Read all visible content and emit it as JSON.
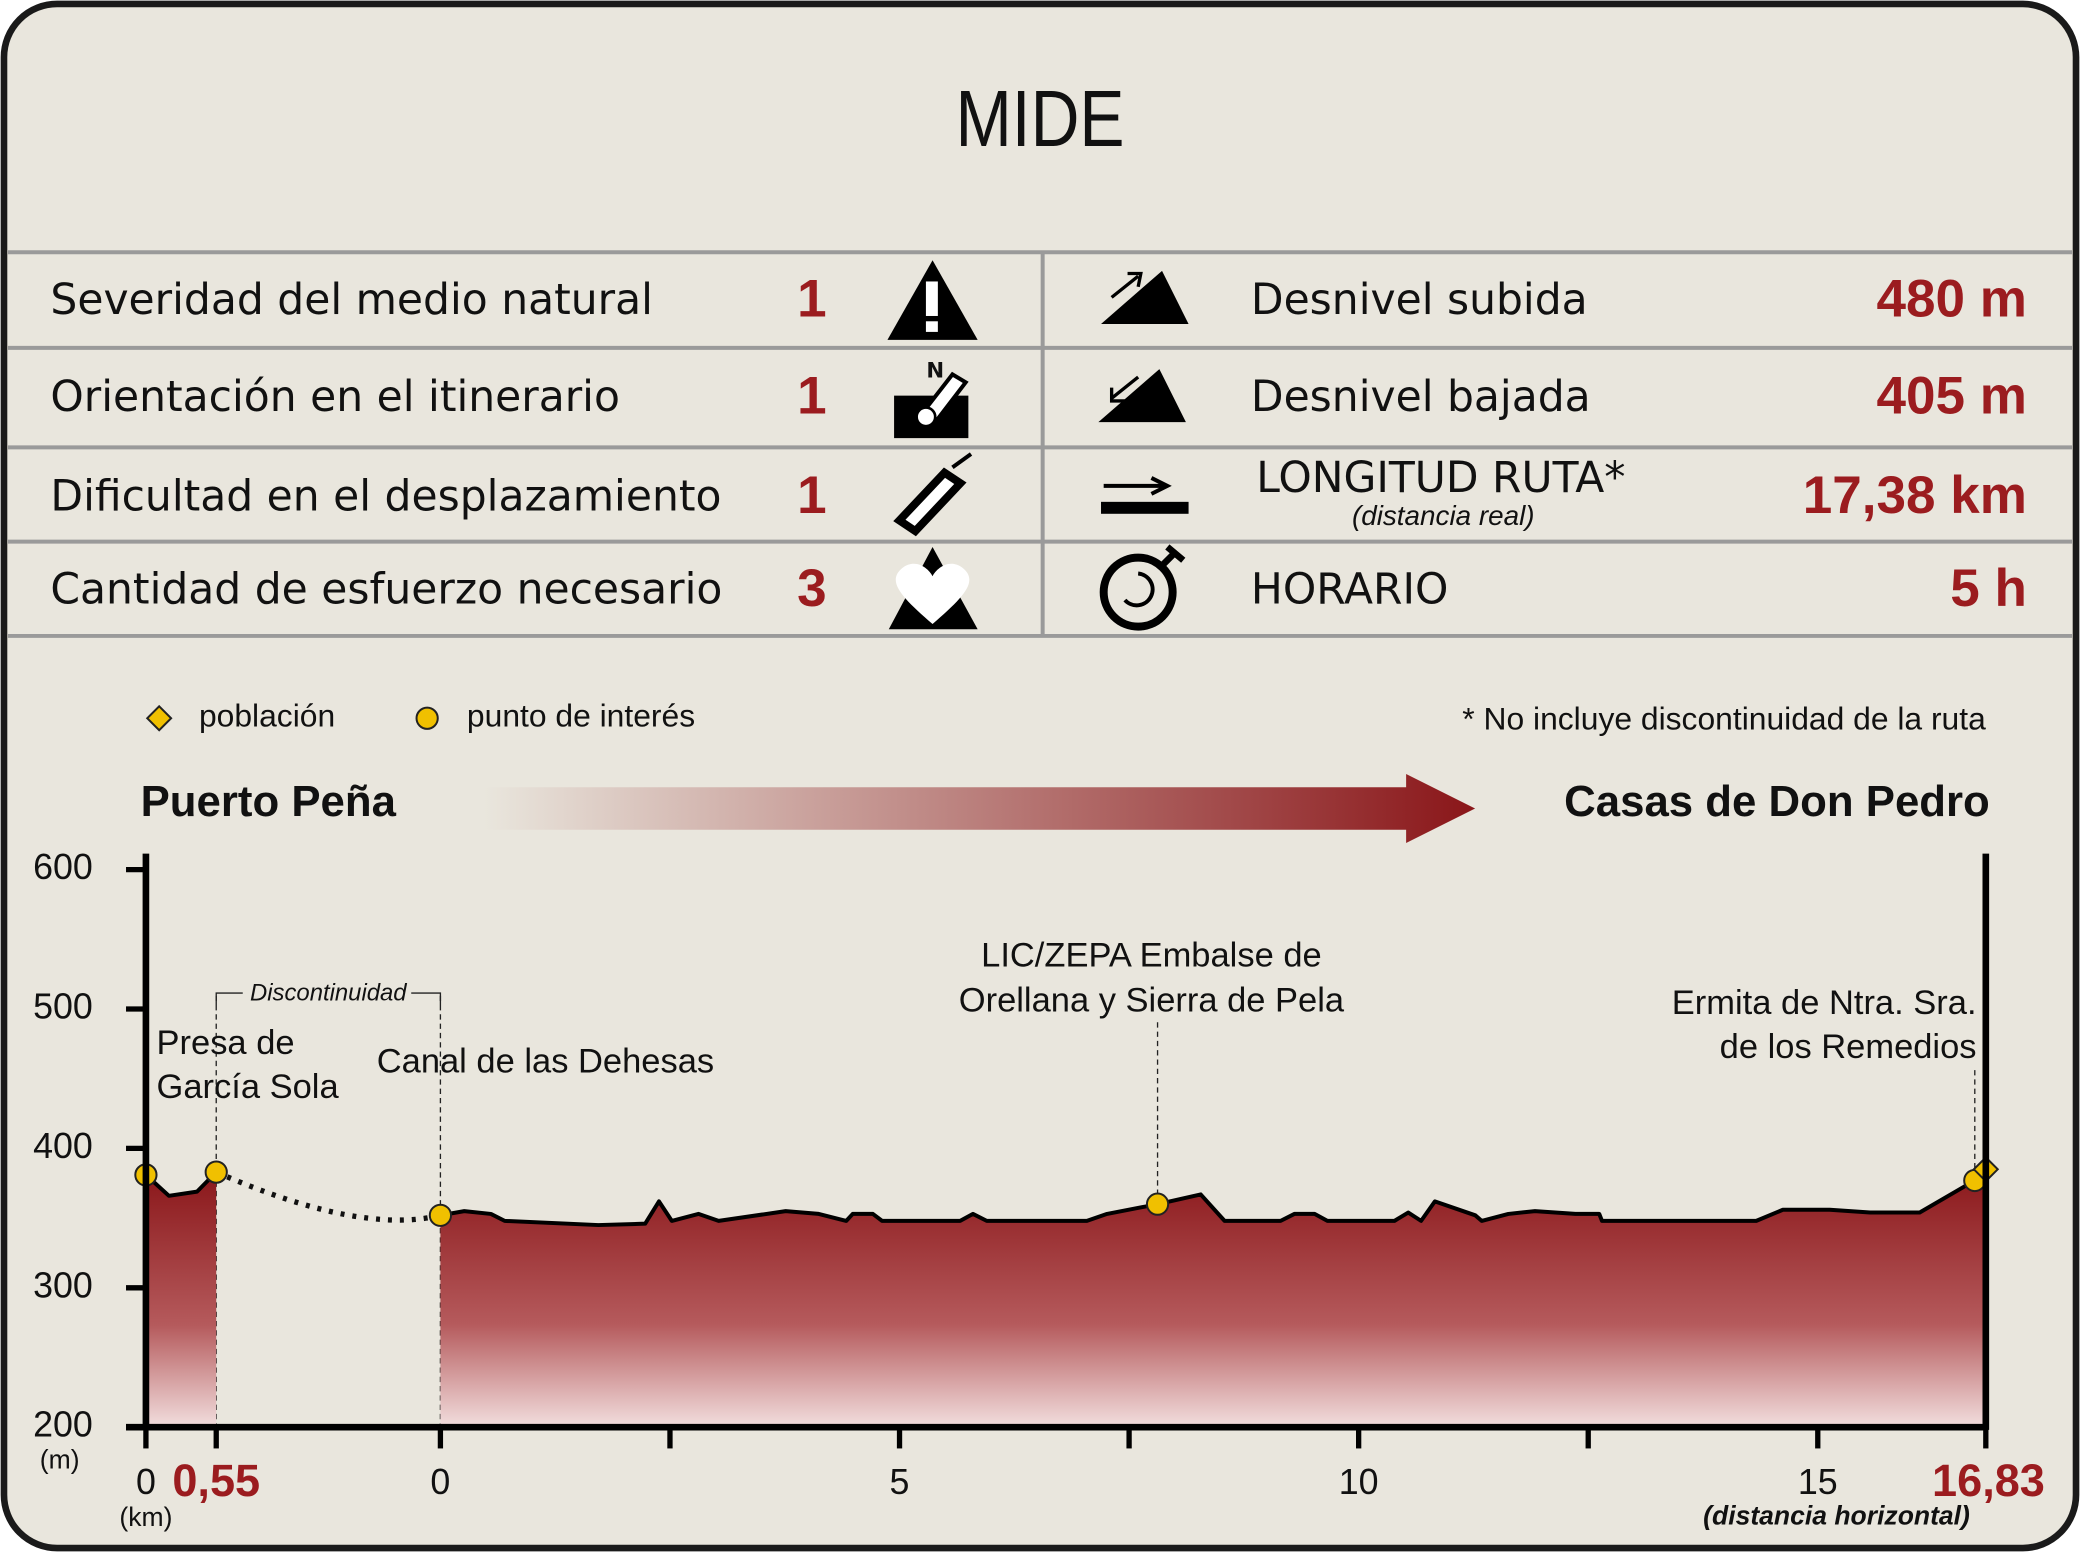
{
  "header": {
    "title": "MIDE"
  },
  "mide": [
    {
      "label": "Severidad del medio natural",
      "value": 1
    },
    {
      "label": "Orientación en el itinerario",
      "value": 1
    },
    {
      "label": "Dificultad en el desplazamiento",
      "value": 1
    },
    {
      "label": "Cantidad de esfuerzo necesario",
      "value": 3
    }
  ],
  "route": [
    {
      "label": "Desnivel subida",
      "value": "480 m"
    },
    {
      "label": "Desnivel bajada",
      "value": "405 m"
    },
    {
      "label": "LONGITUD RUTA*",
      "note": "(distancia real)",
      "value": "17,38 km"
    },
    {
      "label": "HORARIO",
      "value": "5 h"
    }
  ],
  "chart_data": {
    "type": "area",
    "legend": [
      {
        "marker": "diamond",
        "label": "población"
      },
      {
        "marker": "circle",
        "label": "punto de interés"
      }
    ],
    "marker_color": "#f0c000",
    "note": "* No incluye discontinuidad de la ruta",
    "start": "Puerto Peña",
    "end": "Casas de Don Pedro",
    "ylim": [
      200,
      600
    ],
    "yticks": [
      200,
      300,
      400,
      500,
      600
    ],
    "ylabel": "(m)",
    "xlabel": "(km)",
    "xnote": "(distancia horizontal)",
    "discontinuity": "Discontinuidad",
    "segments": [
      {
        "xlim": [
          0,
          0.55
        ],
        "xticks": [
          0,
          {
            "value": 0.55,
            "label": "0,55"
          }
        ],
        "x": [
          0,
          0.18,
          0.4,
          0.55
        ],
        "values": [
          381,
          366,
          369,
          383
        ],
        "points": [
          {
            "x": 0,
            "y": 381,
            "marker": "circle"
          },
          {
            "x": 0.55,
            "y": 383,
            "marker": "circle",
            "label": [
              "Presa de",
              "García Sola"
            ]
          }
        ]
      },
      {
        "xlim": [
          0,
          16.83
        ],
        "xticks": [
          0,
          5,
          10,
          15,
          {
            "value": 16.83,
            "label": "16,83"
          }
        ],
        "minor_xticks": [
          2.5,
          7.5,
          12.5
        ],
        "x": [
          0,
          0.26,
          0.55,
          0.7,
          1.72,
          2.23,
          2.38,
          2.52,
          2.81,
          3.03,
          3.76,
          4.12,
          4.42,
          4.49,
          4.71,
          4.81,
          5.66,
          5.8,
          5.95,
          7.04,
          7.26,
          7.81,
          8.28,
          8.54,
          9.15,
          9.3,
          9.52,
          9.66,
          10.39,
          10.54,
          10.68,
          10.83,
          11.27,
          11.34,
          11.63,
          11.92,
          12.36,
          12.62,
          12.65,
          14.33,
          14.62,
          15.13,
          15.57,
          16.11,
          16.71,
          16.83
        ],
        "values": [
          352,
          355,
          353,
          348,
          345,
          346,
          362,
          348,
          353,
          348,
          355,
          353,
          348,
          353,
          353,
          348,
          348,
          353,
          348,
          348,
          353,
          360,
          367,
          348,
          348,
          353,
          353,
          348,
          348,
          354,
          348,
          362,
          352,
          348,
          353,
          355,
          353,
          353,
          348,
          348,
          356,
          356,
          354,
          354,
          377,
          385
        ],
        "points": [
          {
            "x": 0,
            "y": 352,
            "marker": "circle",
            "label": [
              "Canal de las Dehesas"
            ]
          },
          {
            "x": 7.81,
            "y": 360,
            "marker": "circle",
            "label": [
              "LIC/ZEPA Embalse de",
              "Orellana y Sierra de Pela"
            ]
          },
          {
            "x": 16.71,
            "y": 377,
            "marker": "circle",
            "label": [
              "Ermita de Ntra. Sra.",
              "de los Remedios"
            ]
          },
          {
            "x": 16.83,
            "y": 385,
            "marker": "diamond"
          }
        ]
      }
    ]
  }
}
